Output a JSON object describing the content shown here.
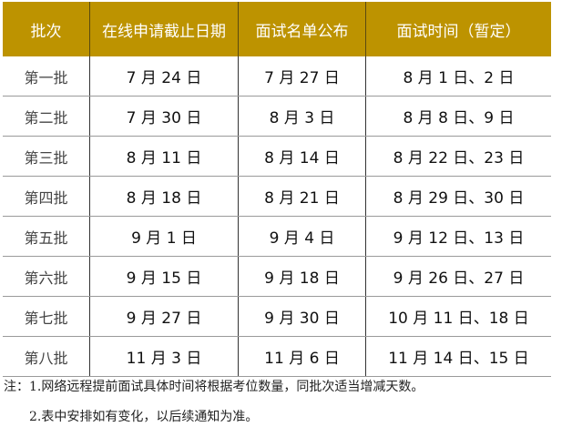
{
  "table": {
    "header_color": "#BD9300",
    "headers": [
      "批次",
      "在线申请截止日期",
      "面试名单公布",
      "面试时间（暂定）"
    ],
    "rows": [
      [
        "第一批",
        "7 月 24 日",
        "7 月 27 日",
        "8 月 1 日、2 日"
      ],
      [
        "第二批",
        "7 月 30 日",
        "8 月 3 日",
        "8 月 8 日、9 日"
      ],
      [
        "第三批",
        "8 月 11 日",
        "8 月 14 日",
        "8 月 22 日、23 日"
      ],
      [
        "第四批",
        "8 月 18 日",
        "8 月 21 日",
        "8 月 29 日、30 日"
      ],
      [
        "第五批",
        "9 月 1 日",
        "9 月 4 日",
        "9 月 12 日、13 日"
      ],
      [
        "第六批",
        "9 月 15 日",
        "9 月 18 日",
        "9 月 26 日、27 日"
      ],
      [
        "第七批",
        "9 月 27 日",
        "9 月 30 日",
        "10 月 11 日、18 日"
      ],
      [
        "第八批",
        "11 月 3 日",
        "11 月 6 日",
        "11 月 14 日、15 日"
      ]
    ]
  },
  "notes": [
    "注：1.网络远程提前面试具体时间将根据考位数量，同批次适当增减天数。",
    "2.表中安排如有变化，以后续通知为准。"
  ]
}
